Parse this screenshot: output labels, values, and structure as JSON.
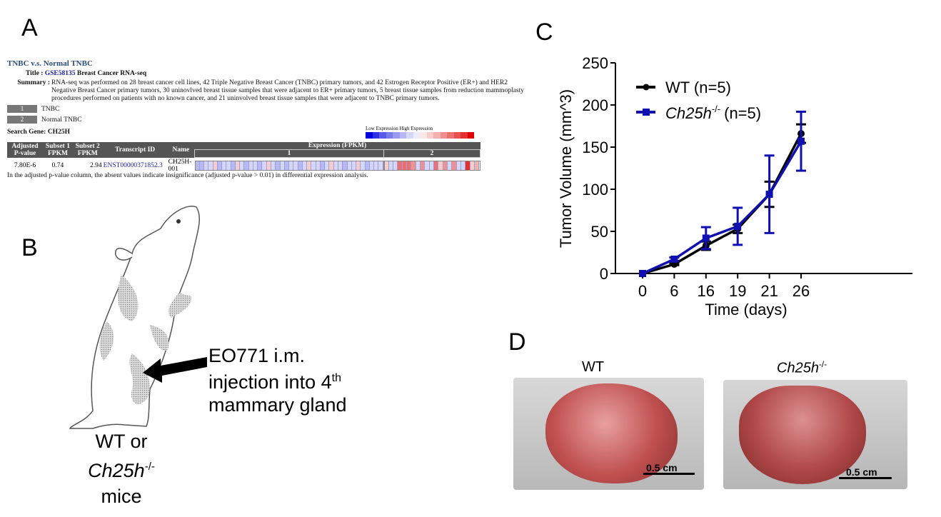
{
  "panels": {
    "a": "A",
    "b": "B",
    "c": "C",
    "d": "D"
  },
  "panel_a": {
    "heading": "TNBC v.s. Normal TNBC",
    "title_label": "Title :",
    "title_id": "GSE58135",
    "title_text": "Breast Cancer RNA-seq",
    "summary_label": "Summary :",
    "summary": "RNA-seq was performed on 28 breast cancer cell lines, 42 Triple Negative Breast Cancer (TNBC) primary tumors, and 42 Estrogen Receptor Positive (ER+) and HER2 Negative Breast Cancer primary tumors, 30 uninovlved breast tissue samples that were adjacent to ER+ primary tumors, 5 breast tissue samples from reduction mammoplasty procedures performed on patients with no known cancer, and 21 uninvolved breast tissue samples that were adjacent to TNBC primary tumors.",
    "subsets": [
      {
        "num": "1",
        "name": "TNBC"
      },
      {
        "num": "2",
        "name": "Normal TNBC"
      }
    ],
    "search_gene": "Search Gene: CH25H",
    "legend_low": "Low Expression",
    "legend_high": "High Expression",
    "legend_colors": [
      "#0000e0",
      "#3030e8",
      "#5a5ae8",
      "#7a7aee",
      "#9a9af2",
      "#b8b8f6",
      "#d6d6fa",
      "#ececfd",
      "#fde8e8",
      "#f9cccc",
      "#f5b0b0",
      "#f09090",
      "#ec7070",
      "#e85050",
      "#e43030",
      "#e00000"
    ],
    "columns": [
      "Adjusted P-value",
      "Subset 1 FPKM",
      "Subset 2 FPKM",
      "Transcript ID",
      "Name",
      "Expression (FPKM)"
    ],
    "groups": [
      "1",
      "2"
    ],
    "row": {
      "pvalue": "7.80E-6",
      "subset1": "0.74",
      "subset2": "2.94",
      "transcript": "ENST00000371852.3",
      "name": "CH25H-001"
    },
    "group1_levels": [
      -2,
      -2,
      -1,
      -1,
      1,
      -2,
      -1,
      -1,
      -2,
      1,
      -1,
      -2,
      -1,
      -1,
      -2,
      -1,
      1,
      -1,
      -2,
      -1,
      -2,
      -1,
      -1,
      -2,
      -1,
      1,
      -1,
      -1,
      -2,
      -1,
      1,
      -1,
      -1,
      -2,
      -1,
      -1,
      1,
      -1,
      -2,
      -1,
      -1,
      -1
    ],
    "group2_levels": [
      1,
      -1,
      -1,
      4,
      4,
      4,
      3,
      -1,
      3,
      -1,
      -1,
      4,
      1,
      3,
      -1,
      3,
      -1,
      -1,
      6,
      1,
      2
    ],
    "footnote": "In the adjusted p-value column, the absent values indicate insignificance (adjusted p-value > 0.01) in differential expression analysis."
  },
  "panel_b": {
    "arrow_text": [
      "EO771 i.m.",
      "injection into 4"
    ],
    "superscript": "th",
    "arrow_text_end": "mammary gland",
    "mouse_label_1": "WT or",
    "mouse_label_gene": "Ch25h",
    "mouse_label_sup": "-/-",
    "mouse_label_3": "mice"
  },
  "chart_data": {
    "type": "line",
    "xlabel": "Time (days)",
    "ylabel": "Tumor Volume (mm^3)",
    "categories": [
      "0",
      "6",
      "16",
      "19",
      "21",
      "26"
    ],
    "ylim": [
      0,
      250
    ],
    "yticks": [
      0,
      50,
      100,
      150,
      200,
      250
    ],
    "legend_position": "top-left",
    "grid": false,
    "series": [
      {
        "name": "WT (n=5)",
        "color": "#000000",
        "marker": "circle",
        "values": [
          0,
          11,
          33,
          53,
          94,
          166
        ],
        "errors": [
          0,
          1,
          5,
          5,
          15,
          11
        ]
      },
      {
        "name": "Ch25h-/- (n=5)",
        "name_italic": "Ch25h",
        "name_sup": "-/-",
        "name_rest": "(n=5)",
        "color": "#1010b0",
        "marker": "square",
        "values": [
          0,
          17,
          42,
          56,
          94,
          157
        ],
        "errors": [
          0,
          2,
          13,
          22,
          46,
          35
        ]
      }
    ]
  },
  "panel_d": {
    "wt_label": "WT",
    "ko_label": "Ch25h",
    "ko_sup": "-/-",
    "scale": "0.5 cm"
  }
}
